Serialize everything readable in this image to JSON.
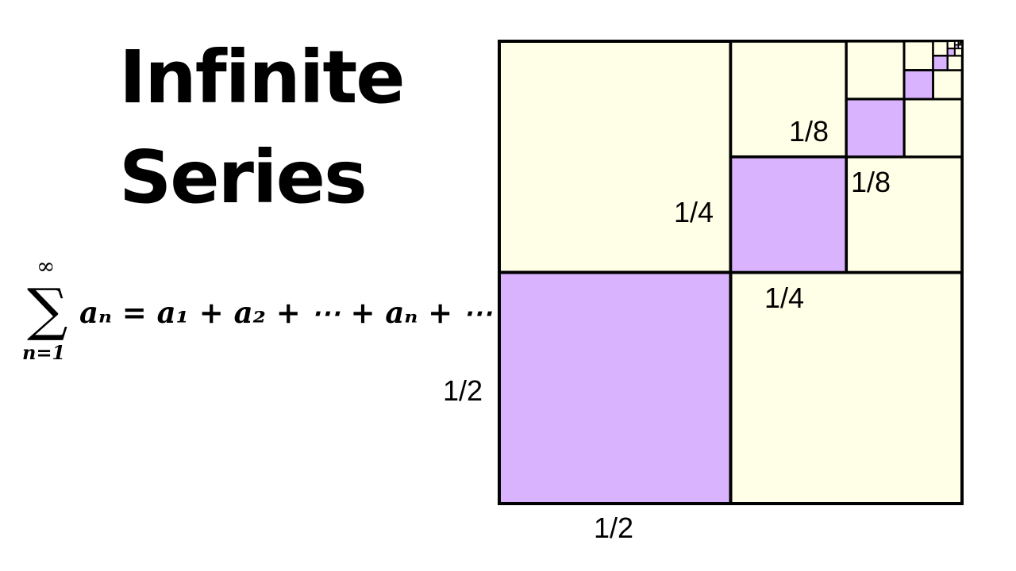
{
  "title_lines": [
    "Infinite",
    "Series"
  ],
  "formula": {
    "operator": "∑",
    "upper": "∞",
    "lower": "n=1",
    "expression": "aₙ = a₁ + a₂ + ⋯ + aₙ + ⋯"
  },
  "diagram": {
    "labels": [
      "1/2",
      "1/2",
      "1/4",
      "1/4",
      "1/8",
      "1/8"
    ],
    "colors": {
      "filled": "#dab3ff",
      "empty": "#fffee6",
      "stroke": "#000000"
    }
  }
}
